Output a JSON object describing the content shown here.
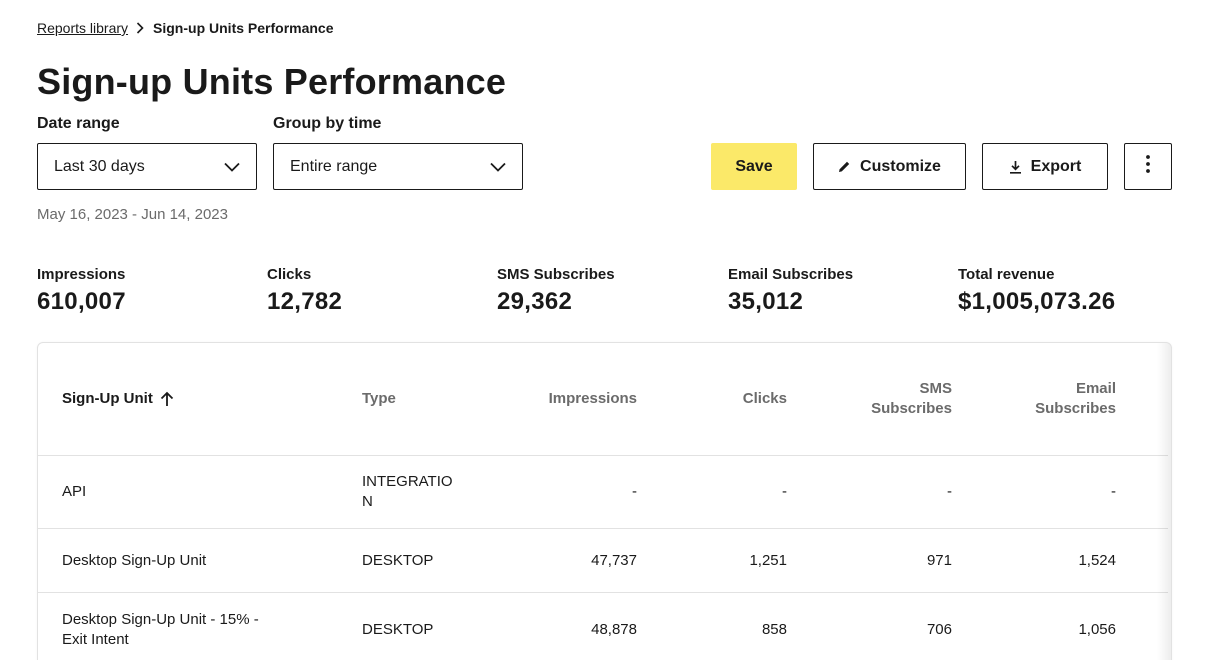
{
  "breadcrumb": {
    "parent": "Reports library",
    "current": "Sign-up Units Performance"
  },
  "page_title": "Sign-up Units Performance",
  "filters": {
    "date_range": {
      "label": "Date range",
      "value": "Last 30 days"
    },
    "group_by_time": {
      "label": "Group by time",
      "value": "Entire range"
    }
  },
  "actions": {
    "save": "Save",
    "customize": "Customize",
    "export": "Export",
    "accent_color": "#fbe969"
  },
  "date_text": "May 16, 2023 - Jun 14, 2023",
  "metrics": [
    {
      "label": "Impressions",
      "value": "610,007"
    },
    {
      "label": "Clicks",
      "value": "12,782"
    },
    {
      "label": "SMS Subscribes",
      "value": "29,362"
    },
    {
      "label": "Email Subscribes",
      "value": "35,012"
    },
    {
      "label": "Total revenue",
      "value": "$1,005,073.26"
    }
  ],
  "table": {
    "columns": {
      "unit": "Sign-Up Unit",
      "type": "Type",
      "impressions": "Impressions",
      "clicks": "Clicks",
      "sms_line1": "SMS",
      "sms_line2": "Subscribes",
      "email_line1": "Email",
      "email_line2": "Subscribes"
    },
    "rows": [
      {
        "unit_line1": "API",
        "unit_line2": "",
        "type_line1": "INTEGRATIO",
        "type_line2": "N",
        "impressions": "-",
        "clicks": "-",
        "sms": "-",
        "email": "-"
      },
      {
        "unit_line1": "Desktop Sign-Up Unit",
        "unit_line2": "",
        "type_line1": "DESKTOP",
        "type_line2": "",
        "impressions": "47,737",
        "clicks": "1,251",
        "sms": "971",
        "email": "1,524"
      },
      {
        "unit_line1": "Desktop Sign-Up Unit - 15% -",
        "unit_line2": "Exit Intent",
        "type_line1": "DESKTOP",
        "type_line2": "",
        "impressions": "48,878",
        "clicks": "858",
        "sms": "706",
        "email": "1,056"
      }
    ]
  }
}
